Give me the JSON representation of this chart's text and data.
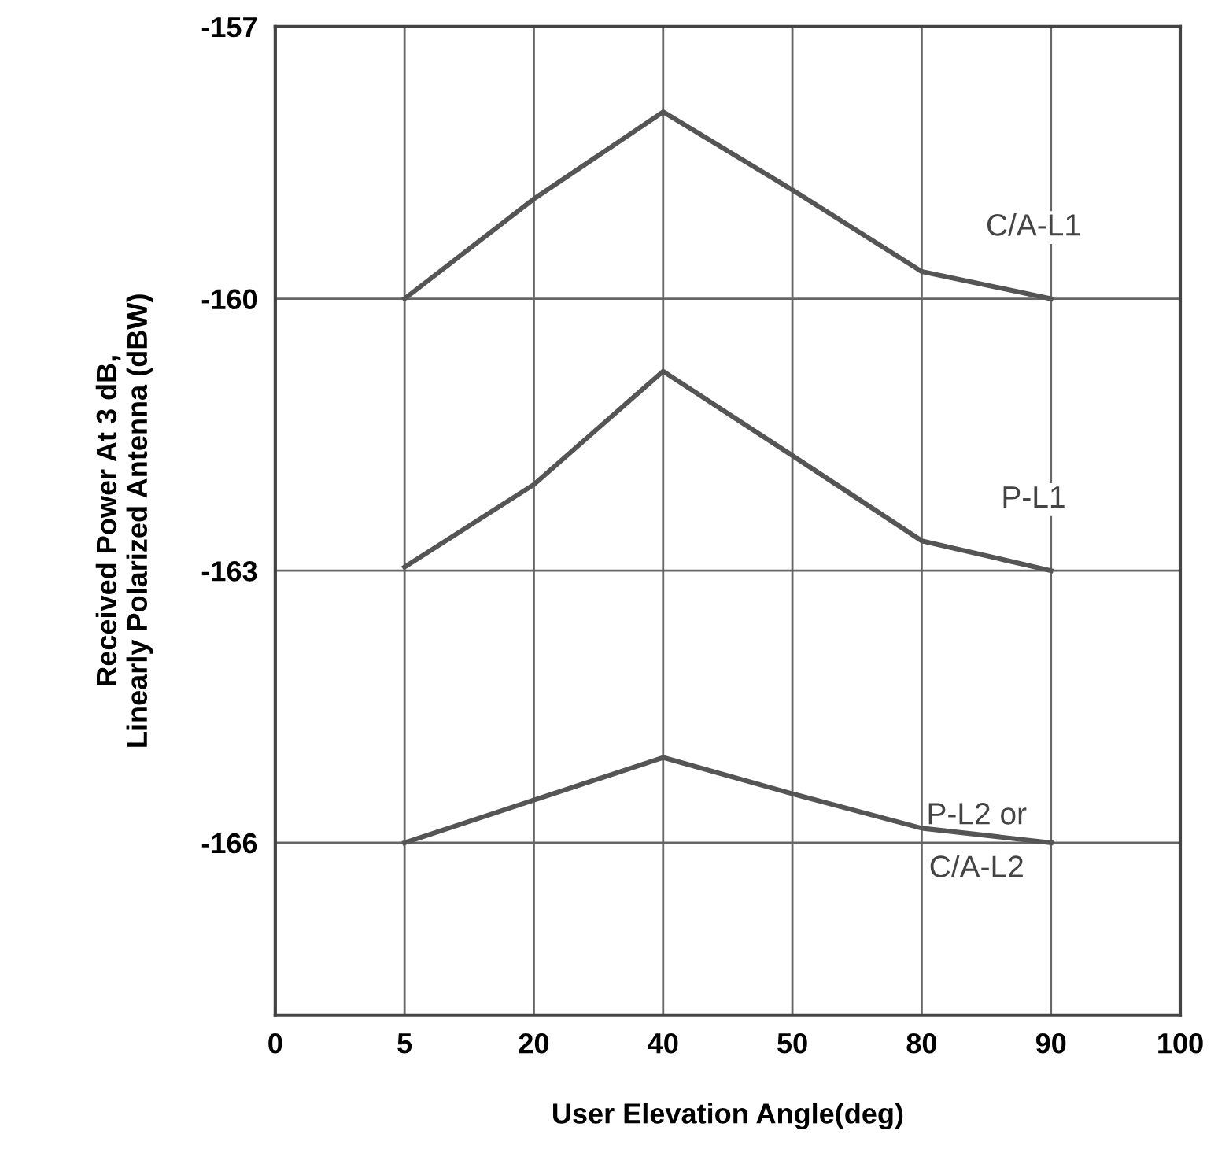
{
  "chart_data": {
    "type": "line",
    "xlabel": "User Elevation Angle(deg)",
    "ylabel": "Received Power At 3 dB,\nLinearly Polarized Antenna (dBW)",
    "categories": [
      "0",
      "5",
      "20",
      "40",
      "50",
      "80",
      "90",
      "100"
    ],
    "series": [
      {
        "name": "C/A-L1",
        "color": "#555555",
        "values": [
          null,
          -160,
          -158.9,
          -157.94,
          -158.8,
          -159.7,
          -160,
          null
        ]
      },
      {
        "name": "P-L1",
        "color": "#555555",
        "values": [
          null,
          -162.96,
          -162.05,
          -160.8,
          -161.73,
          -162.67,
          -163,
          null
        ]
      },
      {
        "name": "P-L2 or\nC/A-L2",
        "color": "#555555",
        "values": [
          null,
          -166,
          -165.53,
          -165.06,
          -165.46,
          -165.84,
          -166,
          null
        ]
      }
    ],
    "ylim": [
      -167.9,
      -157
    ],
    "yticks": [
      -157,
      -160,
      -163,
      -166
    ],
    "grid": true,
    "marker": "none",
    "line_style": "solid"
  }
}
